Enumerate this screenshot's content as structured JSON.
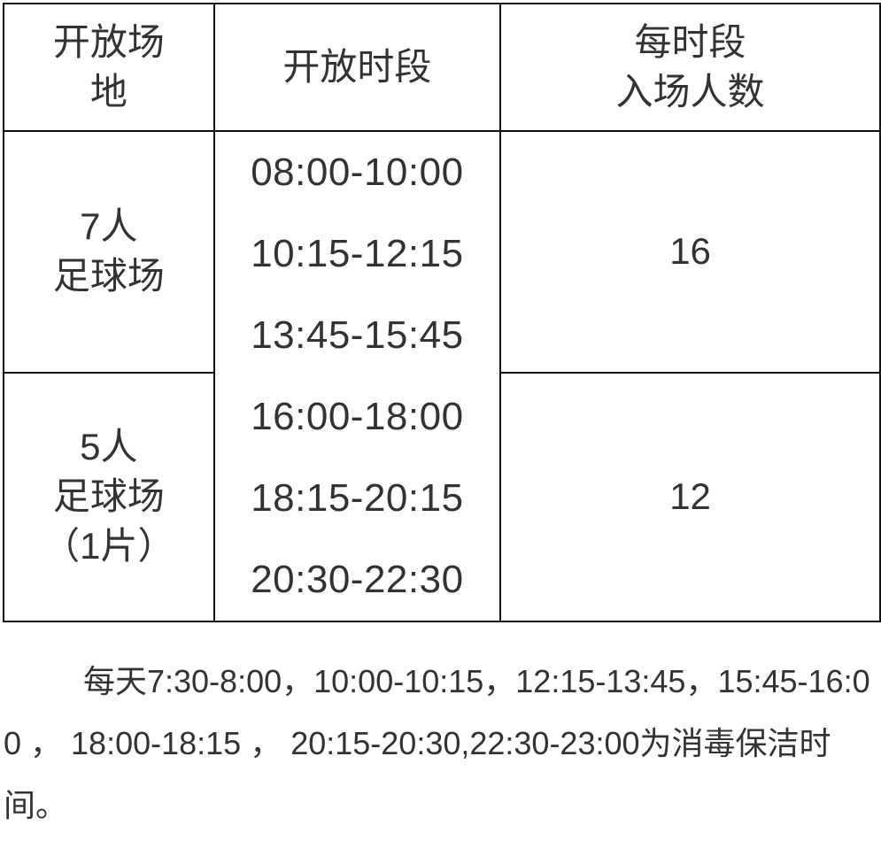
{
  "table": {
    "headers": [
      "开放场地",
      "开放时段",
      "每时段入场人数"
    ],
    "header_lines": [
      [
        "开放场",
        "地"
      ],
      [
        "开放时段"
      ],
      [
        "每时段",
        "入场人数"
      ]
    ],
    "rows": [
      {
        "venue_lines": [
          "7人",
          "足球场"
        ],
        "count": "16"
      },
      {
        "venue_lines": [
          "5人",
          "足球场",
          "（1片）"
        ],
        "count": "12"
      }
    ],
    "time_slots": [
      "08:00-10:00",
      "10:15-12:15",
      "13:45-15:45",
      "16:00-18:00",
      "18:15-20:15",
      "20:30-22:30"
    ]
  },
  "note": "每天7:30-8:00，10:00-10:15，12:15-13:45，15:45-16:00 ， 18:00-18:15 ， 20:15-20:30,22:30-23:00为消毒保洁时间。"
}
